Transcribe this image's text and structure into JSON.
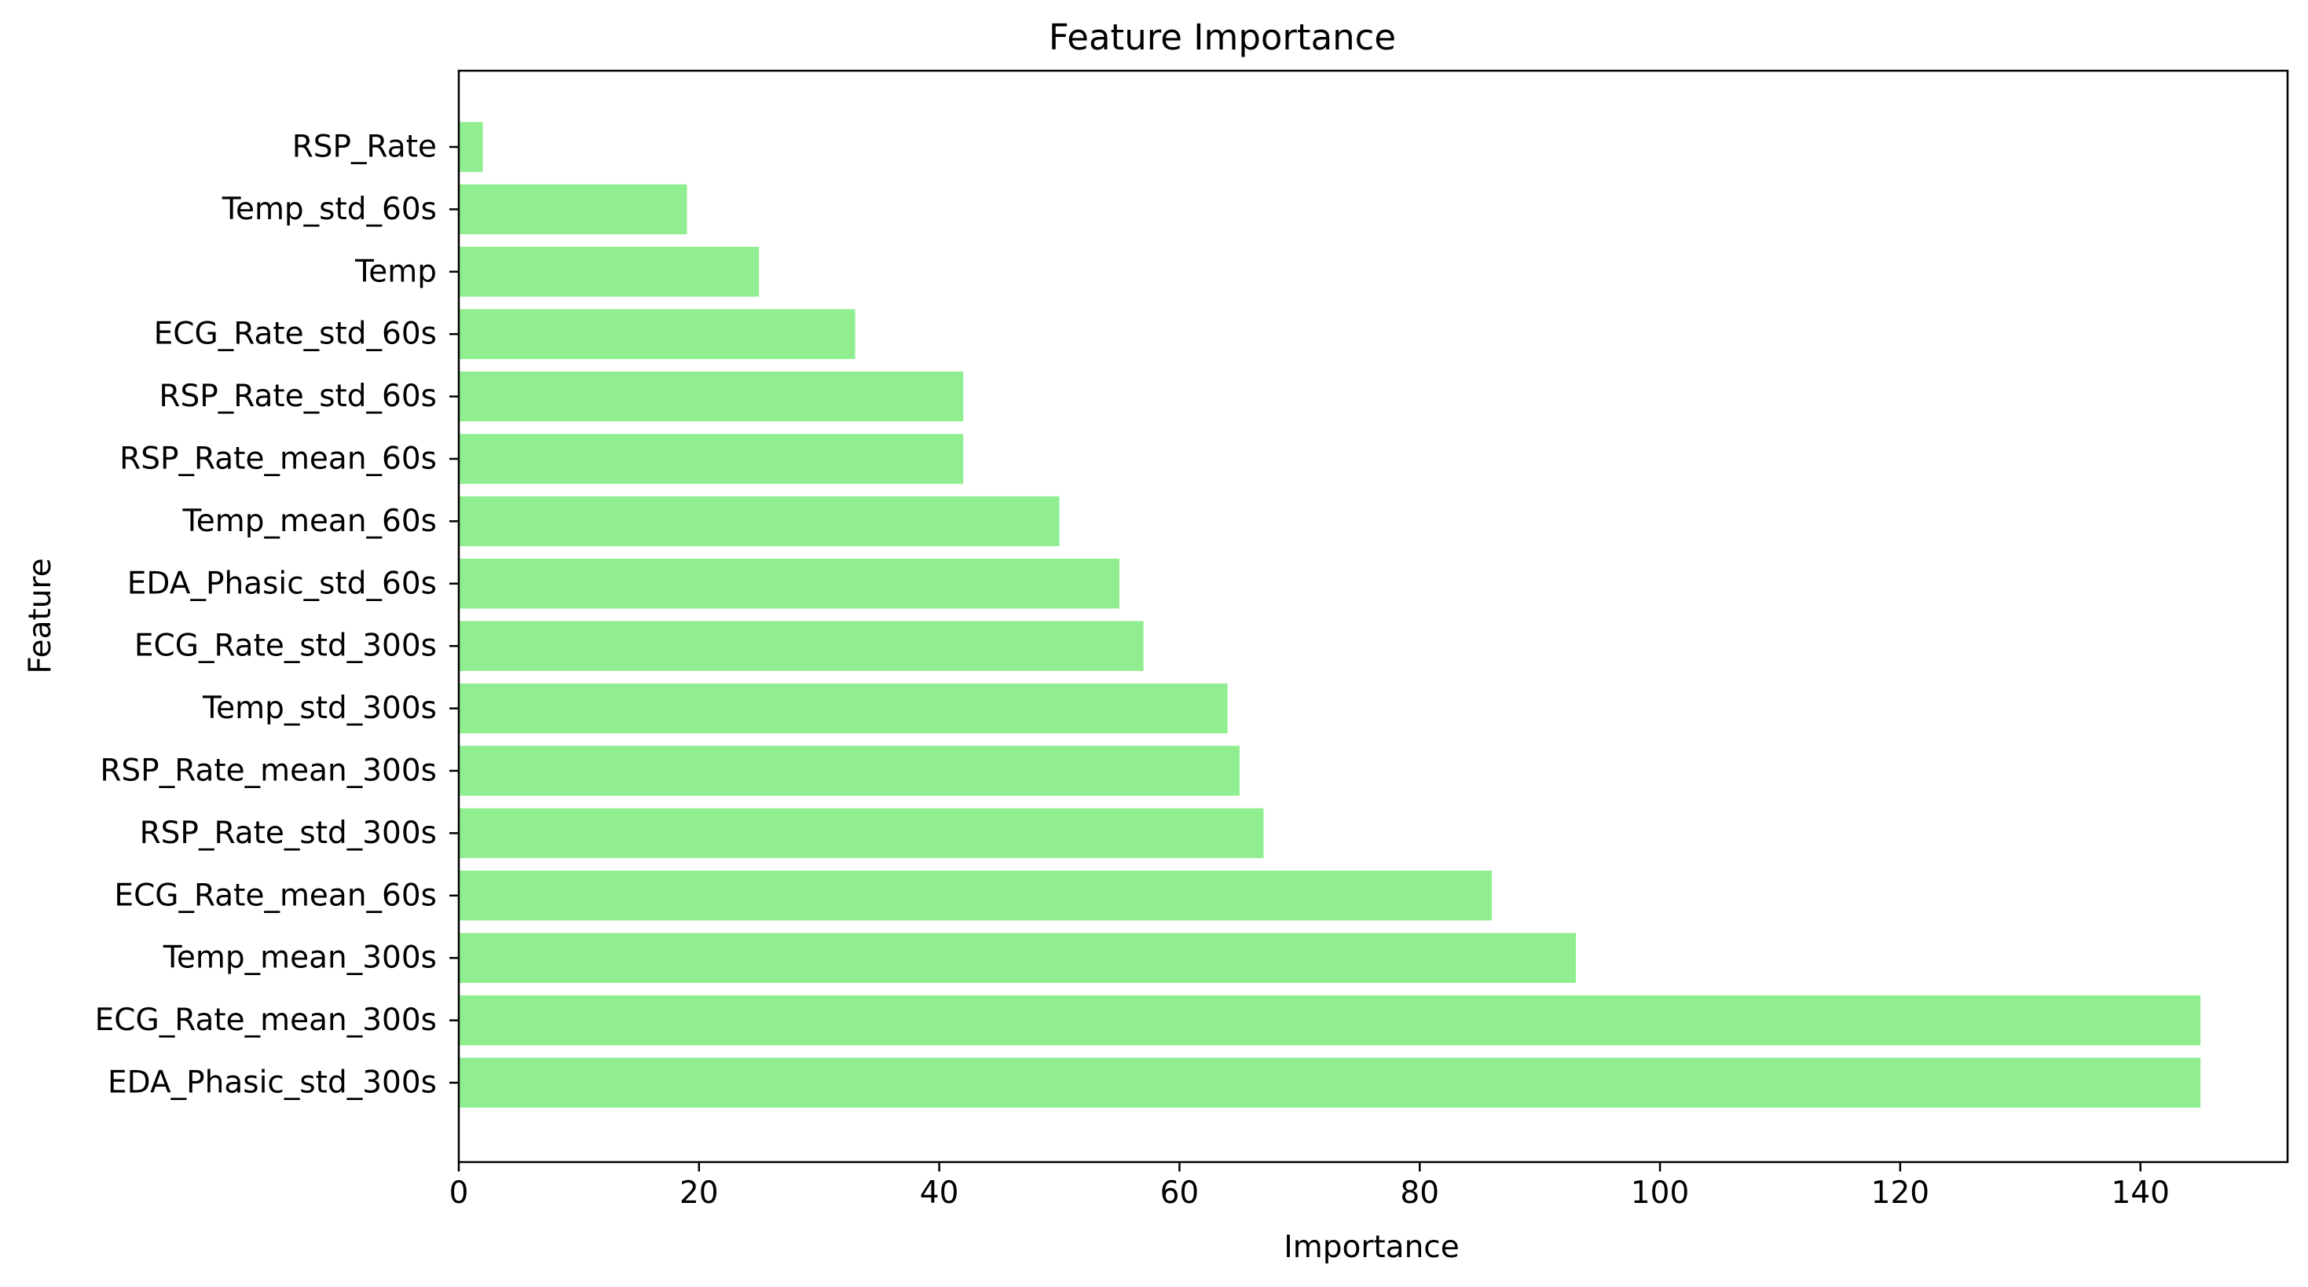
{
  "chart_data": {
    "type": "bar",
    "orientation": "horizontal",
    "title": "Feature Importance",
    "xlabel": "Importance",
    "ylabel": "Feature",
    "xlim": [
      0,
      152.25
    ],
    "xticks": [
      0,
      20,
      40,
      60,
      80,
      100,
      120,
      140
    ],
    "grid": false,
    "legend": "none",
    "bar_color": "#90EE90",
    "categories": [
      "RSP_Rate",
      "Temp_std_60s",
      "Temp",
      "ECG_Rate_std_60s",
      "RSP_Rate_std_60s",
      "RSP_Rate_mean_60s",
      "Temp_mean_60s",
      "EDA_Phasic_std_60s",
      "ECG_Rate_std_300s",
      "Temp_std_300s",
      "RSP_Rate_mean_300s",
      "RSP_Rate_std_300s",
      "ECG_Rate_mean_60s",
      "Temp_mean_300s",
      "ECG_Rate_mean_300s",
      "EDA_Phasic_std_300s"
    ],
    "values": [
      2,
      19,
      25,
      33,
      42,
      42,
      50,
      55,
      57,
      64,
      65,
      67,
      86,
      93,
      145,
      145
    ]
  }
}
